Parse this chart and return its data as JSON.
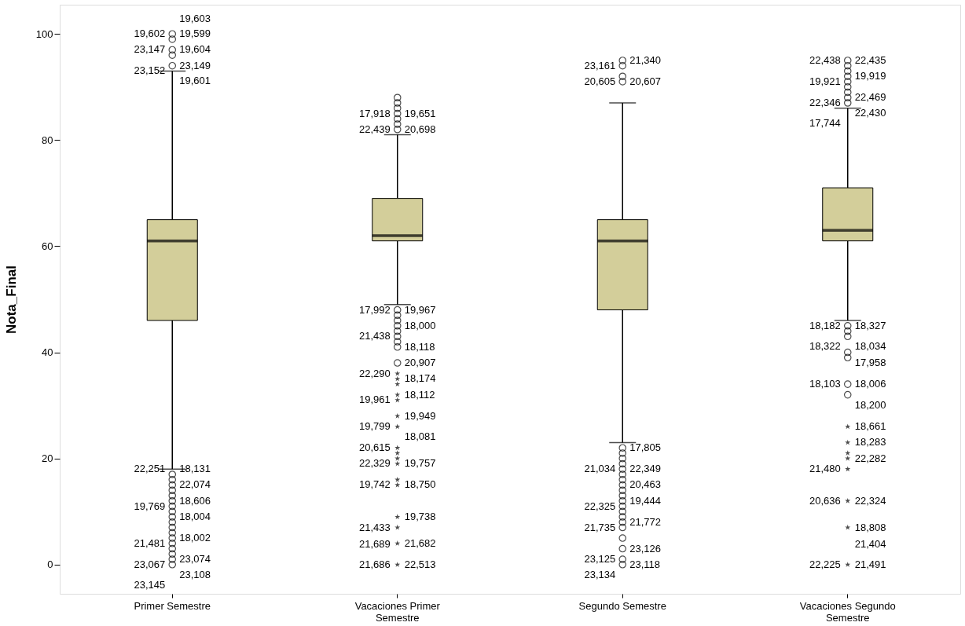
{
  "chart_data": {
    "type": "box",
    "ylabel": "Nota_Final",
    "categories": [
      "Primer Semestre",
      "Vacaciones Primer Semestre",
      "Segundo Semestre",
      "Vacaciones Segundo Semestre"
    ],
    "ylim": [
      -5.5,
      105.5
    ],
    "yticks": [
      0,
      20,
      40,
      60,
      80,
      100
    ],
    "grid": false,
    "legend": false,
    "series": [
      {
        "color": "#d3ce9a",
        "boxes": [
          {
            "low": 18,
            "q1": 46,
            "median": 61,
            "q3": 65,
            "high": 93
          },
          {
            "low": 49,
            "q1": 61,
            "median": 62,
            "q3": 69,
            "high": 81
          },
          {
            "low": 23,
            "q1": 48,
            "median": 61,
            "q3": 65,
            "high": 87
          },
          {
            "low": 46,
            "q1": 61,
            "median": 63,
            "q3": 71,
            "high": 86
          }
        ]
      },
      {
        "type": "scatter",
        "marker": "circle",
        "color": "#000000",
        "x": [
          "Primer Semestre",
          "Primer Semestre",
          "Primer Semestre",
          "Primer Semestre",
          "Primer Semestre",
          "Primer Semestre",
          "Primer Semestre",
          "Primer Semestre",
          "Primer Semestre",
          "Primer Semestre",
          "Primer Semestre",
          "Primer Semestre",
          "Primer Semestre",
          "Primer Semestre",
          "Primer Semestre",
          "Primer Semestre",
          "Primer Semestre",
          "Primer Semestre",
          "Primer Semestre",
          "Primer Semestre",
          "Primer Semestre",
          "Primer Semestre",
          "Primer Semestre",
          "Vacaciones Primer Semestre",
          "Vacaciones Primer Semestre",
          "Vacaciones Primer Semestre",
          "Vacaciones Primer Semestre",
          "Vacaciones Primer Semestre",
          "Vacaciones Primer Semestre",
          "Vacaciones Primer Semestre",
          "Vacaciones Primer Semestre",
          "Vacaciones Primer Semestre",
          "Vacaciones Primer Semestre",
          "Vacaciones Primer Semestre",
          "Vacaciones Primer Semestre",
          "Vacaciones Primer Semestre",
          "Vacaciones Primer Semestre",
          "Vacaciones Primer Semestre",
          "Vacaciones Primer Semestre",
          "Segundo Semestre",
          "Segundo Semestre",
          "Segundo Semestre",
          "Segundo Semestre",
          "Segundo Semestre",
          "Segundo Semestre",
          "Segundo Semestre",
          "Segundo Semestre",
          "Segundo Semestre",
          "Segundo Semestre",
          "Segundo Semestre",
          "Segundo Semestre",
          "Segundo Semestre",
          "Segundo Semestre",
          "Segundo Semestre",
          "Segundo Semestre",
          "Segundo Semestre",
          "Segundo Semestre",
          "Segundo Semestre",
          "Segundo Semestre",
          "Segundo Semestre",
          "Segundo Semestre",
          "Segundo Semestre",
          "Segundo Semestre",
          "Vacaciones Segundo Semestre",
          "Vacaciones Segundo Semestre",
          "Vacaciones Segundo Semestre",
          "Vacaciones Segundo Semestre",
          "Vacaciones Segundo Semestre",
          "Vacaciones Segundo Semestre",
          "Vacaciones Segundo Semestre",
          "Vacaciones Segundo Semestre",
          "Vacaciones Segundo Semestre",
          "Vacaciones Segundo Semestre",
          "Vacaciones Segundo Semestre",
          "Vacaciones Segundo Semestre",
          "Vacaciones Segundo Semestre",
          "Vacaciones Segundo Semestre",
          "Vacaciones Segundo Semestre",
          "Vacaciones Segundo Semestre"
        ],
        "values": [
          100,
          99,
          97,
          96,
          94,
          17,
          16,
          15,
          14,
          13,
          12,
          11,
          10,
          9,
          8,
          7,
          6,
          5,
          4,
          3,
          2,
          1,
          0,
          88,
          87,
          86,
          85,
          84,
          83,
          82,
          48,
          47,
          46,
          45,
          44,
          43,
          42,
          41,
          38,
          95,
          94,
          92,
          91,
          22,
          21,
          20,
          19,
          18,
          17,
          16,
          15,
          14,
          13,
          12,
          11,
          10,
          9,
          8,
          7,
          5,
          3,
          1,
          0,
          95,
          94,
          93,
          92,
          91,
          90,
          89,
          88,
          87,
          45,
          44,
          43,
          40,
          39,
          34,
          32
        ]
      },
      {
        "type": "scatter",
        "marker": "star",
        "color": "#000000",
        "x": [
          "Vacaciones Primer Semestre",
          "Vacaciones Primer Semestre",
          "Vacaciones Primer Semestre",
          "Vacaciones Primer Semestre",
          "Vacaciones Primer Semestre",
          "Vacaciones Primer Semestre",
          "Vacaciones Primer Semestre",
          "Vacaciones Primer Semestre",
          "Vacaciones Primer Semestre",
          "Vacaciones Primer Semestre",
          "Vacaciones Primer Semestre",
          "Vacaciones Primer Semestre",
          "Vacaciones Primer Semestre",
          "Vacaciones Primer Semestre",
          "Vacaciones Primer Semestre",
          "Vacaciones Primer Semestre",
          "Vacaciones Primer Semestre",
          "Vacaciones Segundo Semestre",
          "Vacaciones Segundo Semestre",
          "Vacaciones Segundo Semestre",
          "Vacaciones Segundo Semestre",
          "Vacaciones Segundo Semestre",
          "Vacaciones Segundo Semestre",
          "Vacaciones Segundo Semestre",
          "Vacaciones Segundo Semestre"
        ],
        "values": [
          36,
          35,
          34,
          32,
          31,
          28,
          26,
          22,
          21,
          20,
          19,
          16,
          15,
          9,
          7,
          4,
          0,
          26,
          23,
          21,
          20,
          18,
          12,
          7,
          0
        ]
      }
    ],
    "annotations": [
      {
        "text": "19,599",
        "x": "Primer Semestre",
        "y": 100
      },
      {
        "text": "19,602",
        "x": "Primer Semestre",
        "y": 100
      },
      {
        "text": "19,604",
        "x": "Primer Semestre",
        "y": 99
      },
      {
        "text": "23,147",
        "x": "Primer Semestre",
        "y": 97
      },
      {
        "text": "19,603",
        "x": "Primer Semestre",
        "y": 99
      },
      {
        "text": "23,149",
        "x": "Primer Semestre",
        "y": 94
      },
      {
        "text": "23,152",
        "x": "Primer Semestre",
        "y": 93
      },
      {
        "text": "19,601",
        "x": "Primer Semestre",
        "y": 93
      },
      {
        "text": "18,131",
        "x": "Primer Semestre",
        "y": 18
      },
      {
        "text": "22,251",
        "x": "Primer Semestre",
        "y": 18
      },
      {
        "text": "22,074",
        "x": "Primer Semestre",
        "y": 15
      },
      {
        "text": "18,606",
        "x": "Primer Semestre",
        "y": 12
      },
      {
        "text": "19,769",
        "x": "Primer Semestre",
        "y": 11
      },
      {
        "text": "18,004",
        "x": "Primer Semestre",
        "y": 9
      },
      {
        "text": "18,002",
        "x": "Primer Semestre",
        "y": 5
      },
      {
        "text": "21,481",
        "x": "Primer Semestre",
        "y": 4
      },
      {
        "text": "23,074",
        "x": "Primer Semestre",
        "y": 3
      },
      {
        "text": "23,067",
        "x": "Primer Semestre",
        "y": 0
      },
      {
        "text": "23,108",
        "x": "Primer Semestre",
        "y": 0
      },
      {
        "text": "23,145",
        "x": "Primer Semestre",
        "y": 0
      },
      {
        "text": "19,651",
        "x": "Vacaciones Primer Semestre",
        "y": 85
      },
      {
        "text": "17,918",
        "x": "Vacaciones Primer Semestre",
        "y": 85
      },
      {
        "text": "20,698",
        "x": "Vacaciones Primer Semestre",
        "y": 82
      },
      {
        "text": "22,439",
        "x": "Vacaciones Primer Semestre",
        "y": 82
      },
      {
        "text": "19,967",
        "x": "Vacaciones Primer Semestre",
        "y": 48
      },
      {
        "text": "17,992",
        "x": "Vacaciones Primer Semestre",
        "y": 48
      },
      {
        "text": "18,000",
        "x": "Vacaciones Primer Semestre",
        "y": 45
      },
      {
        "text": "21,438",
        "x": "Vacaciones Primer Semestre",
        "y": 43
      },
      {
        "text": "18,118",
        "x": "Vacaciones Primer Semestre",
        "y": 41
      },
      {
        "text": "20,907",
        "x": "Vacaciones Primer Semestre",
        "y": 38
      },
      {
        "text": "22,290",
        "x": "Vacaciones Primer Semestre",
        "y": 36
      },
      {
        "text": "18,174",
        "x": "Vacaciones Primer Semestre",
        "y": 35
      },
      {
        "text": "18,112",
        "x": "Vacaciones Primer Semestre",
        "y": 32
      },
      {
        "text": "19,961",
        "x": "Vacaciones Primer Semestre",
        "y": 31
      },
      {
        "text": "19,949",
        "x": "Vacaciones Primer Semestre",
        "y": 28
      },
      {
        "text": "19,799",
        "x": "Vacaciones Primer Semestre",
        "y": 26
      },
      {
        "text": "18,081",
        "x": "Vacaciones Primer Semestre",
        "y": 26
      },
      {
        "text": "20,615",
        "x": "Vacaciones Primer Semestre",
        "y": 22
      },
      {
        "text": "19,757",
        "x": "Vacaciones Primer Semestre",
        "y": 19
      },
      {
        "text": "22,329",
        "x": "Vacaciones Primer Semestre",
        "y": 19
      },
      {
        "text": "18,750",
        "x": "Vacaciones Primer Semestre",
        "y": 15
      },
      {
        "text": "19,742",
        "x": "Vacaciones Primer Semestre",
        "y": 15
      },
      {
        "text": "19,738",
        "x": "Vacaciones Primer Semestre",
        "y": 9
      },
      {
        "text": "21,433",
        "x": "Vacaciones Primer Semestre",
        "y": 7
      },
      {
        "text": "21,682",
        "x": "Vacaciones Primer Semestre",
        "y": 4
      },
      {
        "text": "22,513",
        "x": "Vacaciones Primer Semestre",
        "y": 0
      },
      {
        "text": "21,686",
        "x": "Vacaciones Primer Semestre",
        "y": 0
      },
      {
        "text": "21,689",
        "x": "Vacaciones Primer Semestre",
        "y": 0
      },
      {
        "text": "21,340",
        "x": "Segundo Semestre",
        "y": 95
      },
      {
        "text": "23,161",
        "x": "Segundo Semestre",
        "y": 94
      },
      {
        "text": "20,607",
        "x": "Segundo Semestre",
        "y": 91
      },
      {
        "text": "20,605",
        "x": "Segundo Semestre",
        "y": 91
      },
      {
        "text": "17,805",
        "x": "Segundo Semestre",
        "y": 22
      },
      {
        "text": "22,349",
        "x": "Segundo Semestre",
        "y": 18
      },
      {
        "text": "21,034",
        "x": "Segundo Semestre",
        "y": 18
      },
      {
        "text": "20,463",
        "x": "Segundo Semestre",
        "y": 15
      },
      {
        "text": "19,444",
        "x": "Segundo Semestre",
        "y": 12
      },
      {
        "text": "22,325",
        "x": "Segundo Semestre",
        "y": 11
      },
      {
        "text": "21,772",
        "x": "Segundo Semestre",
        "y": 8
      },
      {
        "text": "21,735",
        "x": "Segundo Semestre",
        "y": 7
      },
      {
        "text": "23,126",
        "x": "Segundo Semestre",
        "y": 3
      },
      {
        "text": "23,125",
        "x": "Segundo Semestre",
        "y": 1
      },
      {
        "text": "23,118",
        "x": "Segundo Semestre",
        "y": 0
      },
      {
        "text": "23,134",
        "x": "Segundo Semestre",
        "y": 0
      },
      {
        "text": "22,435",
        "x": "Vacaciones Segundo Semestre",
        "y": 95
      },
      {
        "text": "22,438",
        "x": "Vacaciones Segundo Semestre",
        "y": 95
      },
      {
        "text": "19,919",
        "x": "Vacaciones Segundo Semestre",
        "y": 92
      },
      {
        "text": "19,921",
        "x": "Vacaciones Segundo Semestre",
        "y": 91
      },
      {
        "text": "22,469",
        "x": "Vacaciones Segundo Semestre",
        "y": 90
      },
      {
        "text": "22,346",
        "x": "Vacaciones Segundo Semestre",
        "y": 87
      },
      {
        "text": "22,430",
        "x": "Vacaciones Segundo Semestre",
        "y": 87
      },
      {
        "text": "17,744",
        "x": "Vacaciones Segundo Semestre",
        "y": 87
      },
      {
        "text": "18,327",
        "x": "Vacaciones Segundo Semestre",
        "y": 45
      },
      {
        "text": "18,182",
        "x": "Vacaciones Segundo Semestre",
        "y": 45
      },
      {
        "text": "18,034",
        "x": "Vacaciones Segundo Semestre",
        "y": 43
      },
      {
        "text": "18,322",
        "x": "Vacaciones Segundo Semestre",
        "y": 43
      },
      {
        "text": "17,958",
        "x": "Vacaciones Segundo Semestre",
        "y": 40
      },
      {
        "text": "18,006",
        "x": "Vacaciones Segundo Semestre",
        "y": 34
      },
      {
        "text": "18,103",
        "x": "Vacaciones Segundo Semestre",
        "y": 34
      },
      {
        "text": "18,200",
        "x": "Vacaciones Segundo Semestre",
        "y": 32
      },
      {
        "text": "18,661",
        "x": "Vacaciones Segundo Semestre",
        "y": 26
      },
      {
        "text": "18,283",
        "x": "Vacaciones Segundo Semestre",
        "y": 23
      },
      {
        "text": "22,282",
        "x": "Vacaciones Segundo Semestre",
        "y": 20
      },
      {
        "text": "21,480",
        "x": "Vacaciones Segundo Semestre",
        "y": 18
      },
      {
        "text": "22,324",
        "x": "Vacaciones Segundo Semestre",
        "y": 12
      },
      {
        "text": "20,636",
        "x": "Vacaciones Segundo Semestre",
        "y": 12
      },
      {
        "text": "18,808",
        "x": "Vacaciones Segundo Semestre",
        "y": 7
      },
      {
        "text": "21,491",
        "x": "Vacaciones Segundo Semestre",
        "y": 0
      },
      {
        "text": "22,225",
        "x": "Vacaciones Segundo Semestre",
        "y": 0
      },
      {
        "text": "21,404",
        "x": "Vacaciones Segundo Semestre",
        "y": 0
      }
    ]
  }
}
